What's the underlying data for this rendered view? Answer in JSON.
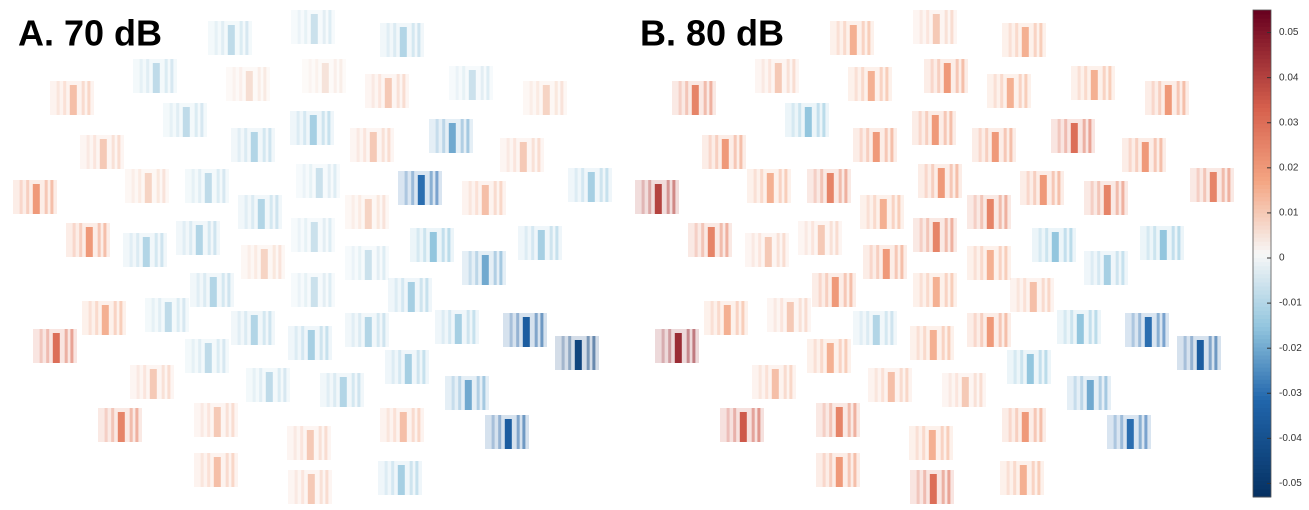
{
  "chart_data": [
    {
      "type": "topo-tiles",
      "title": "A. 70 dB",
      "values": [
        -0.008,
        -0.006,
        -0.01,
        -0.008,
        0.006,
        0.005,
        0.01,
        -0.006,
        0.008,
        0.012,
        -0.008,
        -0.01,
        -0.012,
        0.01,
        -0.02,
        0.01,
        0.01,
        0.008,
        -0.008,
        -0.01,
        -0.006,
        -0.03,
        0.012,
        -0.012,
        0.02,
        0.02,
        -0.01,
        -0.01,
        0.008,
        -0.006,
        0.008,
        -0.015,
        -0.02,
        -0.012,
        -0.01,
        -0.006,
        -0.006,
        -0.012,
        0.015,
        -0.008,
        -0.01,
        -0.012,
        -0.01,
        -0.012,
        -0.035,
        -0.045,
        0.03,
        -0.008,
        -0.008,
        -0.01,
        -0.012,
        0.01,
        -0.02,
        0.025,
        0.01,
        0.01,
        0.012,
        -0.035,
        0.012,
        0.01,
        -0.012
      ]
    },
    {
      "type": "topo-tiles",
      "title": "B. 80 dB",
      "values": [
        0.015,
        0.01,
        0.015,
        0.01,
        0.015,
        0.02,
        0.015,
        0.015,
        0.02,
        0.025,
        -0.015,
        0.02,
        0.02,
        0.02,
        0.03,
        0.02,
        0.02,
        0.015,
        0.025,
        0.015,
        0.02,
        0.02,
        0.025,
        0.025,
        0.04,
        0.025,
        0.01,
        0.01,
        0.02,
        0.025,
        0.025,
        -0.015,
        -0.012,
        -0.015,
        0.02,
        0.015,
        0.015,
        0.012,
        0.015,
        0.01,
        -0.01,
        0.015,
        0.02,
        -0.015,
        -0.03,
        -0.035,
        0.045,
        0.015,
        0.012,
        0.01,
        -0.015,
        0.012,
        -0.02,
        0.035,
        0.025,
        0.015,
        0.02,
        -0.03,
        0.02,
        0.03,
        0.015
      ]
    },
    {
      "type": "colorbar",
      "ylim": [
        -0.053,
        0.055
      ],
      "yticks": [
        0.05,
        0.04,
        0.03,
        0.02,
        0.01,
        0,
        -0.01,
        -0.02,
        -0.03,
        -0.04,
        -0.05
      ]
    }
  ]
}
